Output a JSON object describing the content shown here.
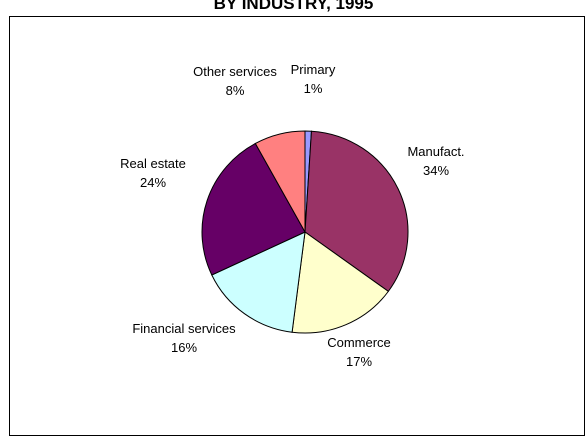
{
  "chart_data": {
    "type": "pie",
    "title": "BY INDUSTRY, 1995",
    "slices": [
      {
        "label": "Primary",
        "value": 1,
        "value_label": "1%",
        "color": "#9999ff"
      },
      {
        "label": "Manufact.",
        "value": 34,
        "value_label": "34%",
        "color": "#993366"
      },
      {
        "label": "Commerce",
        "value": 17,
        "value_label": "17%",
        "color": "#ffffcc"
      },
      {
        "label": "Financial services",
        "value": 16,
        "value_label": "16%",
        "color": "#ccffff"
      },
      {
        "label": "Real estate",
        "value": 24,
        "value_label": "24%",
        "color": "#660066"
      },
      {
        "label": "Other services",
        "value": 8,
        "value_label": "8%",
        "color": "#ff8080"
      }
    ]
  }
}
